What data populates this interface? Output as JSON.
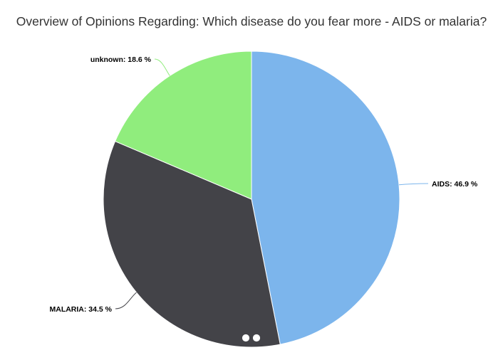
{
  "chart_data": {
    "type": "pie",
    "title": "Overview of Opinions Regarding: Which disease do you fear more - AIDS or malaria?",
    "slices": [
      {
        "label": "AIDS",
        "value": 46.9,
        "display": "AIDS: 46.9 %",
        "color": "#7cb5ec"
      },
      {
        "label": "MALARIA",
        "value": 34.5,
        "display": "MALARIA: 34.5 %",
        "color": "#434348"
      },
      {
        "label": "unknown",
        "value": 18.6,
        "display": "unknown: 18.6 %",
        "color": "#90ed7d"
      }
    ],
    "legend": "none",
    "start_angle": "top",
    "direction": "clockwise"
  }
}
